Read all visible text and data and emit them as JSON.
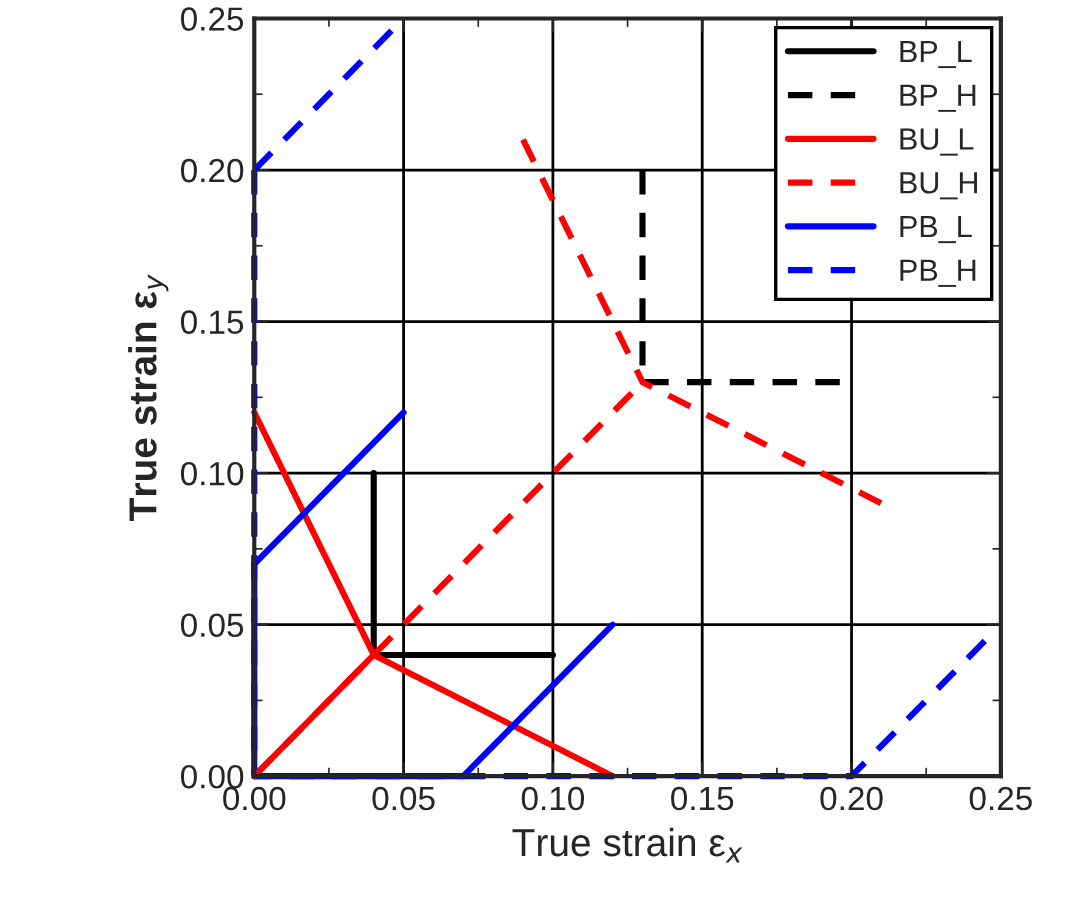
{
  "chart_data": {
    "type": "line",
    "xlabel": "True strain ε$_{x}$",
    "ylabel": "True strain ε$_{y}$",
    "series": [
      {
        "name": "BP_L",
        "color": "#000000",
        "line_style": "solid",
        "x": [
          0.04,
          0.04,
          0.1
        ],
        "values": [
          0.1,
          0.04,
          0.04
        ]
      },
      {
        "name": "BP_H",
        "color": "#000000",
        "line_style": "dashed",
        "x": [
          0.13,
          0.13,
          0.2
        ],
        "values": [
          0.2,
          0.13,
          0.13
        ]
      },
      {
        "name": "BU_L",
        "color": "#ff0000",
        "line_style": "solid",
        "x": [
          0,
          0.04,
          0.12
        ],
        "values": [
          0.12,
          0.04,
          0
        ]
      },
      {
        "name": "BU_H",
        "color": "#ff0000",
        "line_style": "dashed",
        "x": [
          0.09,
          0.13,
          0.21
        ],
        "values": [
          0.21,
          0.13,
          0.09
        ]
      },
      {
        "name": "PB_L",
        "color": "#0000ff",
        "line_style": "solid",
        "x": [
          0,
          0,
          0.07,
          0.12
        ],
        "values": [
          0.07,
          0,
          0,
          0.05
        ]
      },
      {
        "name": "PB_H",
        "color": "#0000ff",
        "line_style": "dashed",
        "x": [
          0,
          0,
          0.2,
          0.245
        ],
        "values": [
          0.2,
          0,
          0,
          0.045
        ]
      },
      {
        "color": "#ff0000",
        "line_style": "solid",
        "x": [
          0,
          0.04
        ],
        "values": [
          0,
          0.04
        ]
      },
      {
        "color": "#ff0000",
        "line_style": "dashed",
        "x": [
          0,
          0.13
        ],
        "values": [
          0,
          0.13
        ]
      },
      {
        "color": "#0000ff",
        "line_style": "solid",
        "x": [
          0,
          0.05
        ],
        "values": [
          0.07,
          0.12
        ]
      },
      {
        "color": "#0000ff",
        "line_style": "dashed",
        "x": [
          0,
          0.05
        ],
        "values": [
          0.2,
          0.25
        ]
      }
    ],
    "xlim": [
      0,
      0.25
    ],
    "ylim": [
      0,
      0.25
    ],
    "xticks": [
      {
        "value": 0,
        "label": "0.00"
      },
      {
        "value": 0.05,
        "label": "0.05"
      },
      {
        "value": 0.1,
        "label": "0.10"
      },
      {
        "value": 0.15,
        "label": "0.15"
      },
      {
        "value": 0.2,
        "label": "0.20"
      },
      {
        "value": 0.25,
        "label": "0.25"
      }
    ],
    "yticks": [
      {
        "value": 0,
        "label": "0.00"
      },
      {
        "value": 0.05,
        "label": "0.05"
      },
      {
        "value": 0.1,
        "label": "0.10"
      },
      {
        "value": 0.15,
        "label": "0.15"
      },
      {
        "value": 0.2,
        "label": "0.20"
      },
      {
        "value": 0.25,
        "label": "0.25"
      }
    ],
    "grid": true,
    "legend": "top right",
    "marker": "none"
  }
}
